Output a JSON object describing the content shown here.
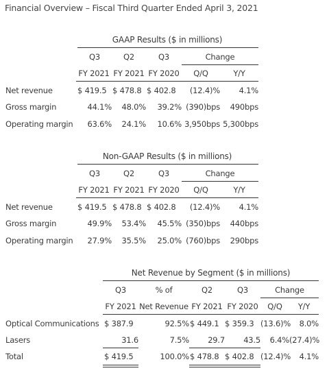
{
  "title": "Financial Overview – Fiscal Third Quarter Ended April 3, 2021",
  "gaap": {
    "title": "GAAP Results ($ in millions)",
    "h1": [
      "Q3",
      "Q2",
      "Q3",
      "Change"
    ],
    "h2": [
      "FY 2021",
      "FY 2021",
      "FY 2020",
      "Q/Q",
      "Y/Y"
    ],
    "rows": [
      {
        "label": "Net revenue",
        "cells": [
          "$  419.5",
          "$  478.8",
          "$  402.8",
          "(12.4)%",
          "4.1%"
        ]
      },
      {
        "label": "Gross margin",
        "cells": [
          "44.1%",
          "48.0%",
          "39.2%",
          "(390)bps",
          "490bps"
        ]
      },
      {
        "label": "Operating margin",
        "cells": [
          "63.6%",
          "24.1%",
          "10.6%",
          "3,950bps",
          "5,300bps"
        ]
      }
    ]
  },
  "nongaap": {
    "title": "Non-GAAP Results ($ in millions)",
    "h1": [
      "Q3",
      "Q2",
      "Q3",
      "Change"
    ],
    "h2": [
      "FY 2021",
      "FY 2021",
      "FY 2020",
      "Q/Q",
      "Y/Y"
    ],
    "rows": [
      {
        "label": "Net revenue",
        "cells": [
          "$  419.5",
          "$  478.8",
          "$  402.8",
          "(12.4)%",
          "4.1%"
        ]
      },
      {
        "label": "Gross margin",
        "cells": [
          "49.9%",
          "53.4%",
          "45.5%",
          "(350)bps",
          "440bps"
        ]
      },
      {
        "label": "Operating margin",
        "cells": [
          "27.9%",
          "35.5%",
          "25.0%",
          "(760)bps",
          "290bps"
        ]
      }
    ]
  },
  "segment": {
    "title": "Net Revenue by Segment ($ in millions)",
    "h1": [
      "Q3",
      "% of",
      "Q2",
      "Q3",
      "Change"
    ],
    "h2": [
      "FY 2021",
      "Net Revenue",
      "FY 2021",
      "FY 2020",
      "Q/Q",
      "Y/Y"
    ],
    "rows": [
      {
        "label": "Optical Communications",
        "cells": [
          "$  387.9",
          "92.5%",
          "$  449.1",
          "$  359.3",
          "(13.6)%",
          "8.0%"
        ]
      },
      {
        "label": "Lasers",
        "cells": [
          "31.6",
          "7.5%",
          "29.7",
          "43.5",
          "6.4%",
          "(27.4)%"
        ]
      },
      {
        "label": "Total",
        "cells": [
          "$  419.5",
          "100.0%",
          "$  478.8",
          "$  402.8",
          "(12.4)%",
          "4.1%"
        ]
      }
    ]
  }
}
